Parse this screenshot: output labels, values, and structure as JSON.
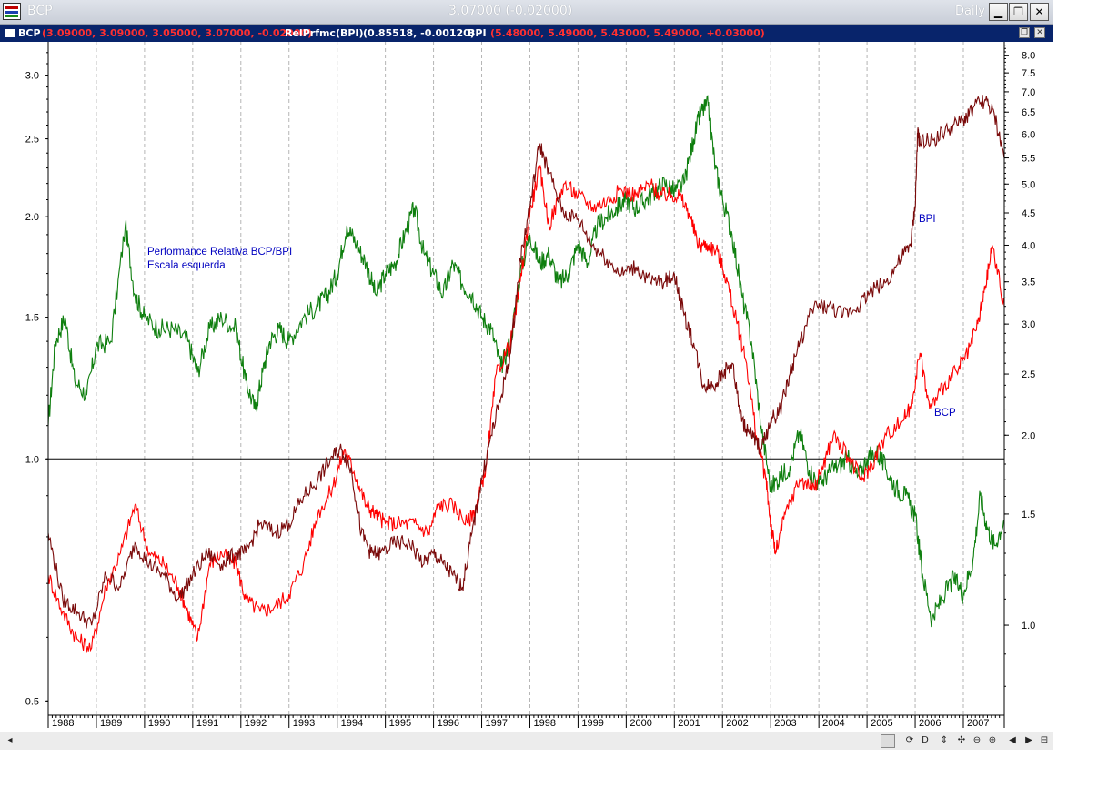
{
  "window": {
    "title": "BCP",
    "quote": "3.07000 (-0.02000)",
    "period": "Daily",
    "minimize_label": "▁",
    "restore_label": "❐",
    "close_label": "✕"
  },
  "legend": {
    "bcp_name": "BCP",
    "bcp_values": "(3.09000, 3.09000, 3.05000, 3.07000, -0.02000)",
    "rel_name": "RelPrfmc(BPI)",
    "rel_values": "(0.85518, -0.00120)",
    "bpi_name": "BPI",
    "bpi_values": "(5.48000, 5.49000, 5.43000, 5.49000, +0.03000)",
    "restore_label": "❐",
    "close_label": "✕"
  },
  "toolbar": {
    "scroll_left_label": "◂",
    "icons": [
      {
        "name": "refresh-icon",
        "label": "⟳"
      },
      {
        "name": "period-daily-button",
        "label": "D"
      },
      {
        "name": "scroll-both-icon",
        "label": "⇕"
      },
      {
        "name": "move-icon",
        "label": "✣"
      },
      {
        "name": "zoom-out-icon",
        "label": "⊖"
      },
      {
        "name": "zoom-in-icon",
        "label": "⊕"
      },
      {
        "name": "scroll-back-icon",
        "label": "◀"
      },
      {
        "name": "scroll-forward-icon",
        "label": "▶"
      },
      {
        "name": "scroll-end-icon",
        "label": "⊟"
      }
    ]
  },
  "chart_data": {
    "type": "line",
    "title": "",
    "log_scale": true,
    "grid": "vertical dashed at year boundaries",
    "x_labels": [
      "1988",
      "1989",
      "1990",
      "1991",
      "1992",
      "1993",
      "1994",
      "1995",
      "1996",
      "1997",
      "1998",
      "1999",
      "2000",
      "2001",
      "2002",
      "2003",
      "2004",
      "2005",
      "2006",
      "2007"
    ],
    "x_range": [
      1988.0,
      2007.85
    ],
    "left_axis": {
      "scale": "log",
      "range": [
        0.48,
        3.3
      ],
      "ticks": [
        "0.5",
        "1.0",
        "1.5",
        "2.0",
        "2.5",
        "3.0"
      ],
      "reference_line": 1.0
    },
    "right_axis": {
      "scale": "log",
      "range": [
        0.72,
        8.4
      ],
      "ticks": [
        "1.0",
        "1.5",
        "2.0",
        "2.5",
        "3.0",
        "3.5",
        "4.0",
        "4.5",
        "5.0",
        "5.5",
        "6.0",
        "6.5",
        "7.0",
        "7.5",
        "8.0"
      ]
    },
    "annotations": [
      {
        "text": "Performance Relativa BCP/BPI",
        "color": "#0000c0"
      },
      {
        "text": "Escala esquerda",
        "color": "#0000c0"
      },
      {
        "text": "BPI",
        "color": "#0000c0"
      },
      {
        "text": "BCP",
        "color": "#0000c0"
      }
    ],
    "series": [
      {
        "name": "RelPrfmc(BPI)",
        "axis": "left",
        "color": "#0f7f0f",
        "x": [
          1988.0,
          1988.15,
          1988.35,
          1988.55,
          1988.8,
          1989.0,
          1989.3,
          1989.6,
          1989.8,
          1990.0,
          1990.3,
          1990.6,
          1990.9,
          1991.1,
          1991.35,
          1991.6,
          1991.9,
          1992.1,
          1992.3,
          1992.45,
          1992.6,
          1992.8,
          1993.0,
          1993.3,
          1993.6,
          1993.8,
          1994.0,
          1994.2,
          1994.4,
          1994.6,
          1994.8,
          1995.0,
          1995.2,
          1995.4,
          1995.6,
          1995.8,
          1996.0,
          1996.2,
          1996.4,
          1996.6,
          1996.8,
          1997.0,
          1997.2,
          1997.4,
          1997.6,
          1997.8,
          1998.0,
          1998.2,
          1998.4,
          1998.6,
          1998.8,
          1999.0,
          1999.2,
          1999.4,
          1999.6,
          1999.8,
          2000.0,
          2000.2,
          2000.4,
          2000.6,
          2000.8,
          2001.0,
          2001.2,
          2001.4,
          2001.55,
          2001.7,
          2001.85,
          2002.0,
          2002.2,
          2002.4,
          2002.6,
          2002.8,
          2003.0,
          2003.2,
          2003.4,
          2003.6,
          2003.8,
          2004.0,
          2004.2,
          2004.4,
          2004.6,
          2004.8,
          2005.0,
          2005.2,
          2005.4,
          2005.6,
          2005.8,
          2006.0,
          2006.15,
          2006.35,
          2006.55,
          2006.8,
          2007.0,
          2007.2,
          2007.35,
          2007.5,
          2007.65,
          2007.85
        ],
        "values": [
          1.1,
          1.4,
          1.5,
          1.25,
          1.2,
          1.38,
          1.4,
          1.95,
          1.6,
          1.5,
          1.45,
          1.45,
          1.4,
          1.28,
          1.45,
          1.5,
          1.45,
          1.25,
          1.15,
          1.28,
          1.4,
          1.45,
          1.4,
          1.5,
          1.55,
          1.6,
          1.7,
          1.95,
          1.85,
          1.75,
          1.6,
          1.7,
          1.75,
          1.9,
          2.05,
          1.8,
          1.7,
          1.6,
          1.75,
          1.65,
          1.6,
          1.5,
          1.45,
          1.3,
          1.4,
          1.7,
          1.9,
          1.75,
          1.8,
          1.65,
          1.7,
          1.85,
          1.75,
          1.95,
          2.0,
          2.05,
          2.1,
          2.05,
          2.1,
          2.15,
          2.2,
          2.15,
          2.2,
          2.5,
          2.7,
          2.75,
          2.3,
          2.1,
          1.9,
          1.6,
          1.4,
          1.1,
          0.92,
          0.95,
          0.98,
          1.08,
          0.97,
          0.93,
          0.96,
          0.98,
          1.0,
          0.95,
          1.0,
          1.02,
          0.97,
          0.92,
          0.9,
          0.85,
          0.72,
          0.63,
          0.67,
          0.71,
          0.68,
          0.75,
          0.9,
          0.82,
          0.78,
          0.84
        ]
      },
      {
        "name": "BCP",
        "axis": "right",
        "color": "#ff0000",
        "x": [
          1988.0,
          1988.3,
          1988.6,
          1988.9,
          1989.2,
          1989.5,
          1989.8,
          1990.1,
          1990.4,
          1990.7,
          1990.9,
          1991.1,
          1991.35,
          1991.6,
          1991.9,
          1992.1,
          1992.4,
          1992.7,
          1993.0,
          1993.3,
          1993.6,
          1993.9,
          1994.15,
          1994.35,
          1994.6,
          1994.8,
          1995.0,
          1995.3,
          1995.6,
          1995.9,
          1996.1,
          1996.4,
          1996.7,
          1996.9,
          1997.1,
          1997.3,
          1997.6,
          1997.8,
          1998.0,
          1998.2,
          1998.4,
          1998.7,
          1999.0,
          1999.3,
          1999.6,
          1999.9,
          2000.2,
          2000.5,
          2000.7,
          2000.9,
          2001.1,
          2001.3,
          2001.5,
          2001.7,
          2001.9,
          2002.1,
          2002.3,
          2002.5,
          2002.7,
          2002.9,
          2003.0,
          2003.1,
          2003.3,
          2003.6,
          2003.9,
          2004.1,
          2004.3,
          2004.6,
          2004.9,
          2005.1,
          2005.4,
          2005.7,
          2005.9,
          2006.1,
          2006.3,
          2006.6,
          2006.9,
          2007.1,
          2007.3,
          2007.45,
          2007.6,
          2007.85
        ],
        "values": [
          1.2,
          1.05,
          0.95,
          0.92,
          1.15,
          1.3,
          1.55,
          1.3,
          1.25,
          1.15,
          1.05,
          0.95,
          1.25,
          1.3,
          1.25,
          1.1,
          1.05,
          1.07,
          1.12,
          1.25,
          1.5,
          1.65,
          1.9,
          1.75,
          1.55,
          1.5,
          1.45,
          1.45,
          1.45,
          1.4,
          1.55,
          1.55,
          1.45,
          1.55,
          1.8,
          2.5,
          2.8,
          3.5,
          4.5,
          5.3,
          4.3,
          5.0,
          4.8,
          4.6,
          4.7,
          4.9,
          4.8,
          5.0,
          4.8,
          4.8,
          4.8,
          4.5,
          4.0,
          4.0,
          3.9,
          3.5,
          3.0,
          2.6,
          2.0,
          1.7,
          1.45,
          1.3,
          1.5,
          1.7,
          1.65,
          1.8,
          2.0,
          1.85,
          1.7,
          1.8,
          2.0,
          2.1,
          2.2,
          2.7,
          2.2,
          2.4,
          2.55,
          2.7,
          3.0,
          3.4,
          4.0,
          3.2
        ]
      },
      {
        "name": "BPI",
        "axis": "right",
        "color": "#7a0a0a",
        "x": [
          1988.0,
          1988.3,
          1988.6,
          1988.9,
          1989.2,
          1989.5,
          1989.8,
          1990.1,
          1990.4,
          1990.7,
          1991.0,
          1991.3,
          1991.6,
          1991.9,
          1992.1,
          1992.4,
          1992.7,
          1993.0,
          1993.3,
          1993.6,
          1993.9,
          1994.1,
          1994.3,
          1994.5,
          1994.7,
          1994.9,
          1995.2,
          1995.5,
          1995.8,
          1996.0,
          1996.2,
          1996.4,
          1996.6,
          1996.8,
          1997.0,
          1997.2,
          1997.4,
          1997.6,
          1997.8,
          1998.0,
          1998.2,
          1998.4,
          1998.7,
          1999.0,
          1999.3,
          1999.6,
          1999.9,
          2000.2,
          2000.5,
          2000.8,
          2001.0,
          2001.2,
          2001.4,
          2001.6,
          2001.8,
          2002.0,
          2002.2,
          2002.4,
          2002.6,
          2002.8,
          2003.0,
          2003.2,
          2003.4,
          2003.6,
          2003.9,
          2004.2,
          2004.5,
          2004.8,
          2005.1,
          2005.4,
          2005.7,
          2005.9,
          2006.0,
          2006.05,
          2006.1,
          2006.4,
          2006.7,
          2007.0,
          2007.2,
          2007.45,
          2007.65,
          2007.85
        ],
        "values": [
          1.4,
          1.1,
          1.05,
          1.0,
          1.2,
          1.15,
          1.35,
          1.25,
          1.2,
          1.1,
          1.2,
          1.3,
          1.25,
          1.3,
          1.3,
          1.45,
          1.4,
          1.45,
          1.6,
          1.7,
          1.85,
          1.9,
          1.75,
          1.4,
          1.3,
          1.3,
          1.35,
          1.35,
          1.25,
          1.3,
          1.25,
          1.2,
          1.15,
          1.4,
          1.7,
          2.0,
          2.3,
          2.7,
          3.8,
          4.6,
          5.8,
          5.2,
          4.5,
          4.4,
          4.0,
          3.8,
          3.6,
          3.7,
          3.5,
          3.5,
          3.6,
          3.1,
          2.8,
          2.4,
          2.4,
          2.5,
          2.6,
          2.1,
          2.0,
          1.9,
          2.1,
          2.2,
          2.5,
          2.8,
          3.2,
          3.2,
          3.1,
          3.2,
          3.4,
          3.5,
          3.8,
          4.0,
          4.6,
          6.0,
          5.8,
          5.9,
          6.1,
          6.3,
          6.6,
          6.8,
          6.4,
          5.5
        ]
      }
    ]
  }
}
